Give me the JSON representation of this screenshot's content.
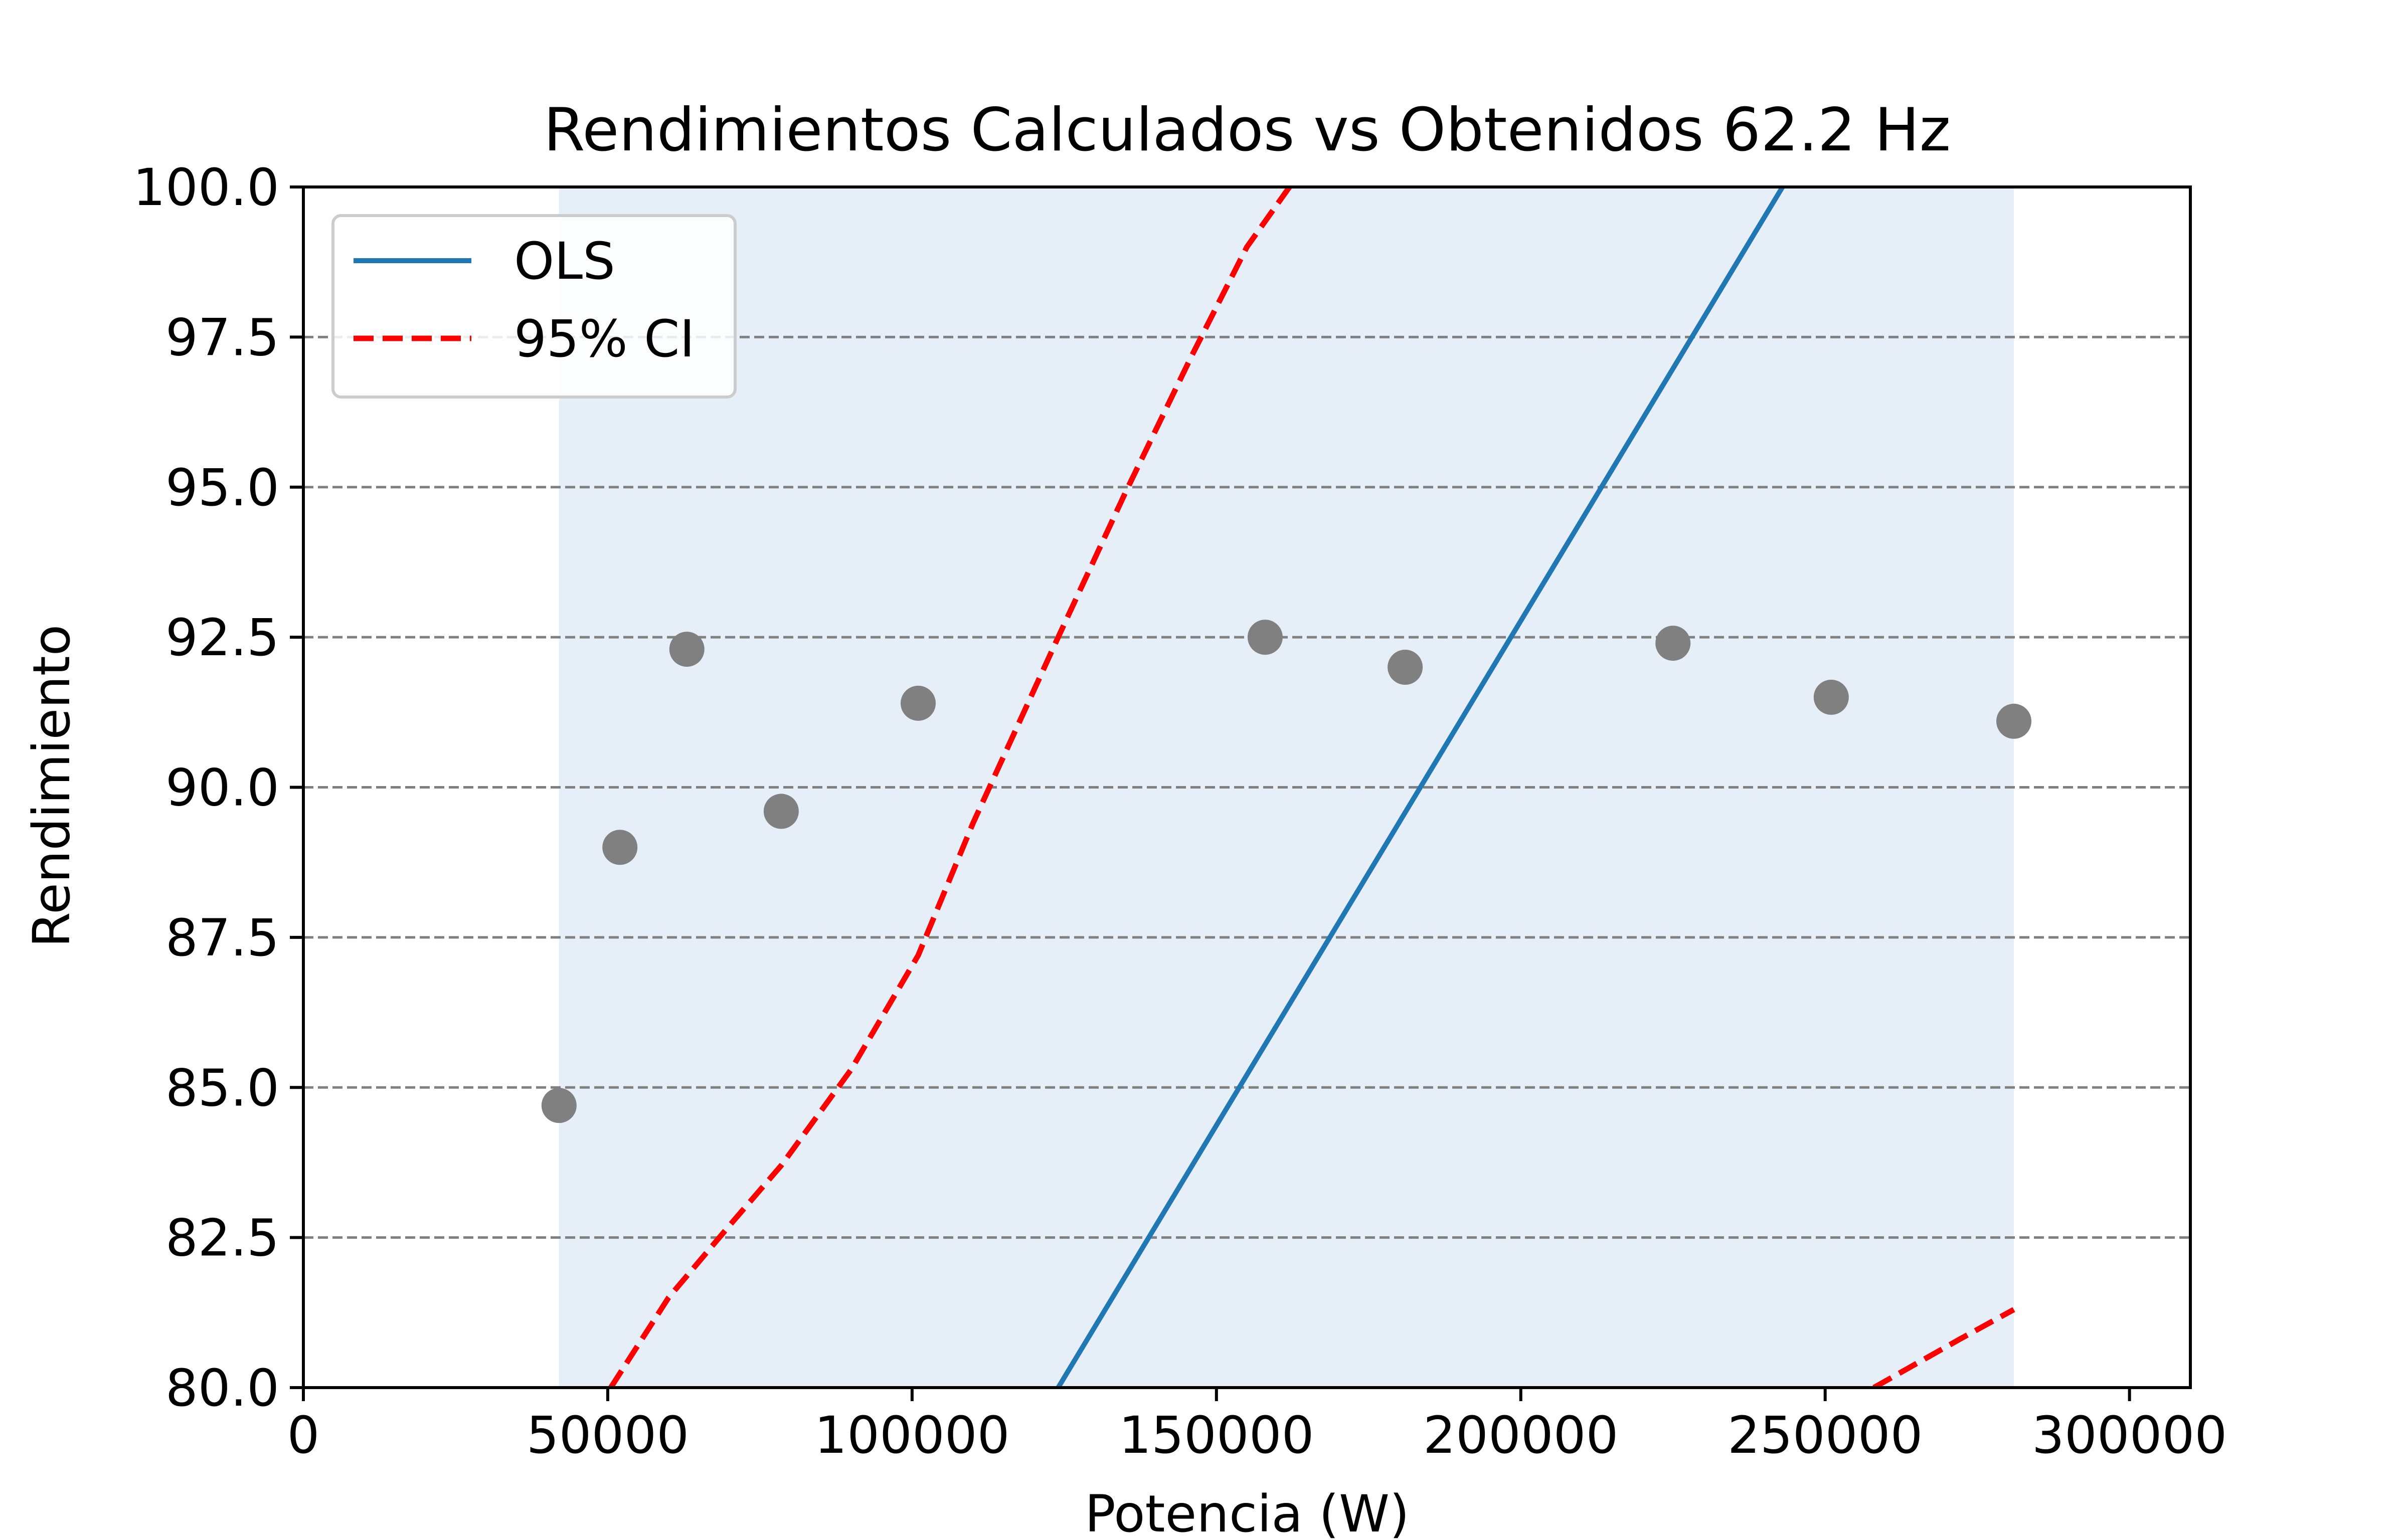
{
  "chart_data": {
    "type": "scatter",
    "title": "Rendimientos Calculados vs Obtenidos 62.2 Hz",
    "xlabel": "Potencia (W)",
    "ylabel": "Rendimiento",
    "xlim": [
      0,
      310000
    ],
    "ylim": [
      80,
      100
    ],
    "xticks": [
      0,
      50000,
      100000,
      150000,
      200000,
      250000,
      300000
    ],
    "yticks": [
      80,
      82.5,
      85,
      87.5,
      90,
      92.5,
      95,
      97.5,
      100
    ],
    "xtick_labels": [
      "0",
      "50000",
      "100000",
      "150000",
      "200000",
      "250000",
      "300000"
    ],
    "ytick_labels": [
      "80.0",
      "82.5",
      "85.0",
      "87.5",
      "90.0",
      "92.5",
      "95.0",
      "97.5",
      "100.0"
    ],
    "grid": {
      "axis": "y",
      "style": "dashed",
      "color": "#808080"
    },
    "legend": {
      "position": "top-left",
      "entries": [
        {
          "label": "OLS",
          "style": "solid",
          "color": "#1f77b4"
        },
        {
          "label": "95% CI",
          "style": "dashed",
          "color": "#ff0000"
        }
      ]
    },
    "points": {
      "color": "#808080",
      "x": [
        42000,
        52000,
        63000,
        78500,
        101000,
        158000,
        181000,
        225000,
        251000,
        281000
      ],
      "y": [
        84.7,
        89.0,
        92.3,
        89.6,
        91.4,
        92.5,
        92.0,
        92.4,
        91.5,
        91.1
      ]
    },
    "ols_line": {
      "color": "#1f77b4",
      "x": [
        124000,
        243000
      ],
      "y": [
        80.0,
        100.0
      ]
    },
    "ci_band": {
      "fill_color": "#e6eff7",
      "x_range": [
        42000,
        281000
      ]
    },
    "ci_lower": {
      "color": "#ff0000",
      "x": [
        258000,
        265000,
        272000,
        281000
      ],
      "y": [
        80.0,
        80.4,
        80.8,
        81.3
      ]
    },
    "ci_upper": {
      "color": "#ff0000",
      "x": [
        50500,
        60000,
        70000,
        78500,
        90000,
        101000,
        110000,
        124000,
        135000,
        146000,
        155000,
        162000
      ],
      "y": [
        80.0,
        81.5,
        82.7,
        83.7,
        85.3,
        87.2,
        89.4,
        92.5,
        94.9,
        97.2,
        99.0,
        100.0
      ]
    }
  }
}
